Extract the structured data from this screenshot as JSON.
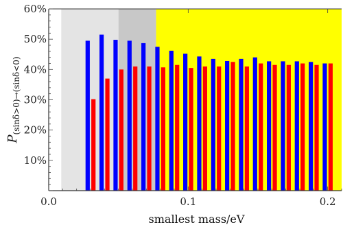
{
  "chart_data": {
    "type": "bar",
    "xlabel": "smallest mass/eV",
    "ylabel": {
      "main": "P",
      "subscript": "(sinδ>0)→(sinδ<0)"
    },
    "xlim": [
      0.0,
      0.21
    ],
    "ylim": [
      0,
      60
    ],
    "x_ticks": [
      {
        "value": 0.0,
        "label": "0.0"
      },
      {
        "value": 0.1,
        "label": "0.1"
      },
      {
        "value": 0.2,
        "label": "0.2"
      }
    ],
    "y_ticks": [
      {
        "value": 10,
        "label": "10%"
      },
      {
        "value": 20,
        "label": "20%"
      },
      {
        "value": 30,
        "label": "30%"
      },
      {
        "value": 40,
        "label": "40%"
      },
      {
        "value": 50,
        "label": "50%"
      },
      {
        "value": 60,
        "label": "60%"
      }
    ],
    "regions": [
      {
        "from": 0.009,
        "to": 0.05,
        "color": "#e4e4e4"
      },
      {
        "from": 0.05,
        "to": 0.077,
        "color": "#c8c8c8"
      },
      {
        "from": 0.077,
        "to": 0.21,
        "color": "#ffff00"
      }
    ],
    "x": [
      0.03,
      0.04,
      0.05,
      0.06,
      0.07,
      0.08,
      0.09,
      0.1,
      0.11,
      0.12,
      0.13,
      0.14,
      0.15,
      0.16,
      0.17,
      0.18,
      0.19,
      0.2
    ],
    "series": [
      {
        "color": "#0000ff",
        "values": [
          49.5,
          51.5,
          49.8,
          49.5,
          48.7,
          47.5,
          46.2,
          45.2,
          44.3,
          43.5,
          42.8,
          43.5,
          44.0,
          42.7,
          42.7,
          42.7,
          42.5,
          42.0
        ]
      },
      {
        "color": "#ff0000",
        "values": [
          30.2,
          37.0,
          40.0,
          41.0,
          41.0,
          40.7,
          41.5,
          40.5,
          41.0,
          41.0,
          42.5,
          41.0,
          42.0,
          41.5,
          41.5,
          42.0,
          41.5,
          42.0
        ]
      }
    ]
  }
}
